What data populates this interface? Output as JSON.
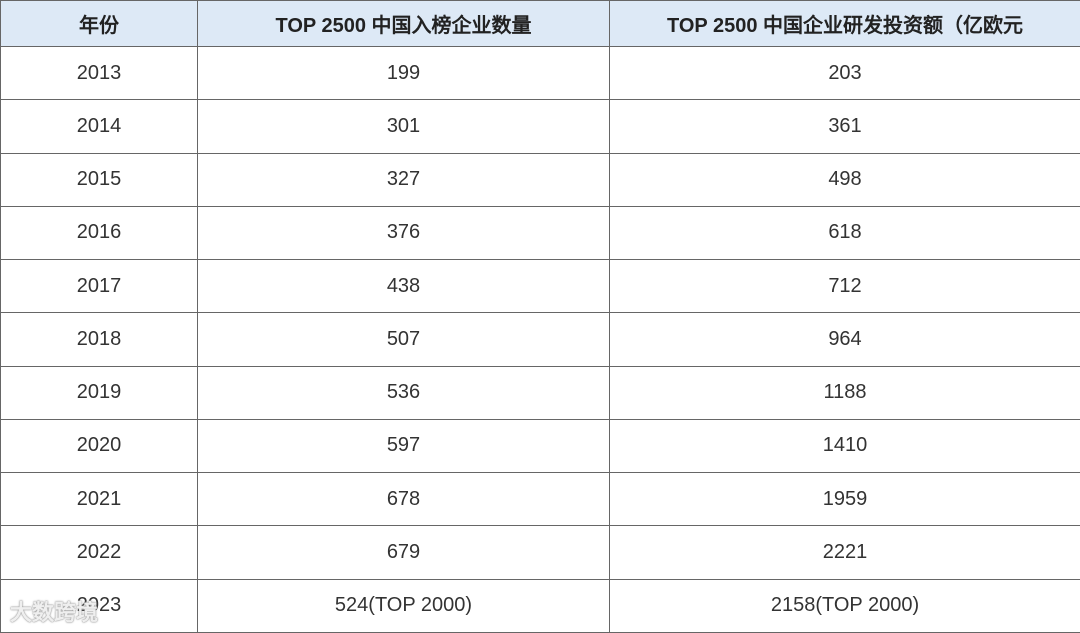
{
  "table": {
    "header": [
      "年份",
      "TOP 2500 中国入榜企业数量",
      "TOP 2500 中国企业研发投资额（亿欧元"
    ],
    "rows": [
      [
        "2013",
        "199",
        "203"
      ],
      [
        "2014",
        "301",
        "361"
      ],
      [
        "2015",
        "327",
        "498"
      ],
      [
        "2016",
        "376",
        "618"
      ],
      [
        "2017",
        "438",
        "712"
      ],
      [
        "2018",
        "507",
        "964"
      ],
      [
        "2019",
        "536",
        "1188"
      ],
      [
        "2020",
        "597",
        "1410"
      ],
      [
        "2021",
        "678",
        "1959"
      ],
      [
        "2022",
        "679",
        "2221"
      ],
      [
        "2023",
        "524(TOP 2000)",
        "2158(TOP 2000)"
      ]
    ]
  },
  "watermark": "大数跨境"
}
